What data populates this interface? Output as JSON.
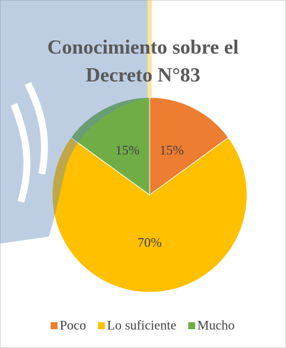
{
  "chart_data": {
    "type": "pie",
    "title": "Conocimiento sobre el Decreto N°83",
    "categories": [
      "Poco",
      "Lo suficiente",
      "Mucho"
    ],
    "values": [
      15,
      70,
      15
    ],
    "value_labels": [
      "15%",
      "70%",
      "15%"
    ],
    "colors": [
      "#ed7d31",
      "#ffc000",
      "#70ad47"
    ],
    "legend": "bottom"
  }
}
